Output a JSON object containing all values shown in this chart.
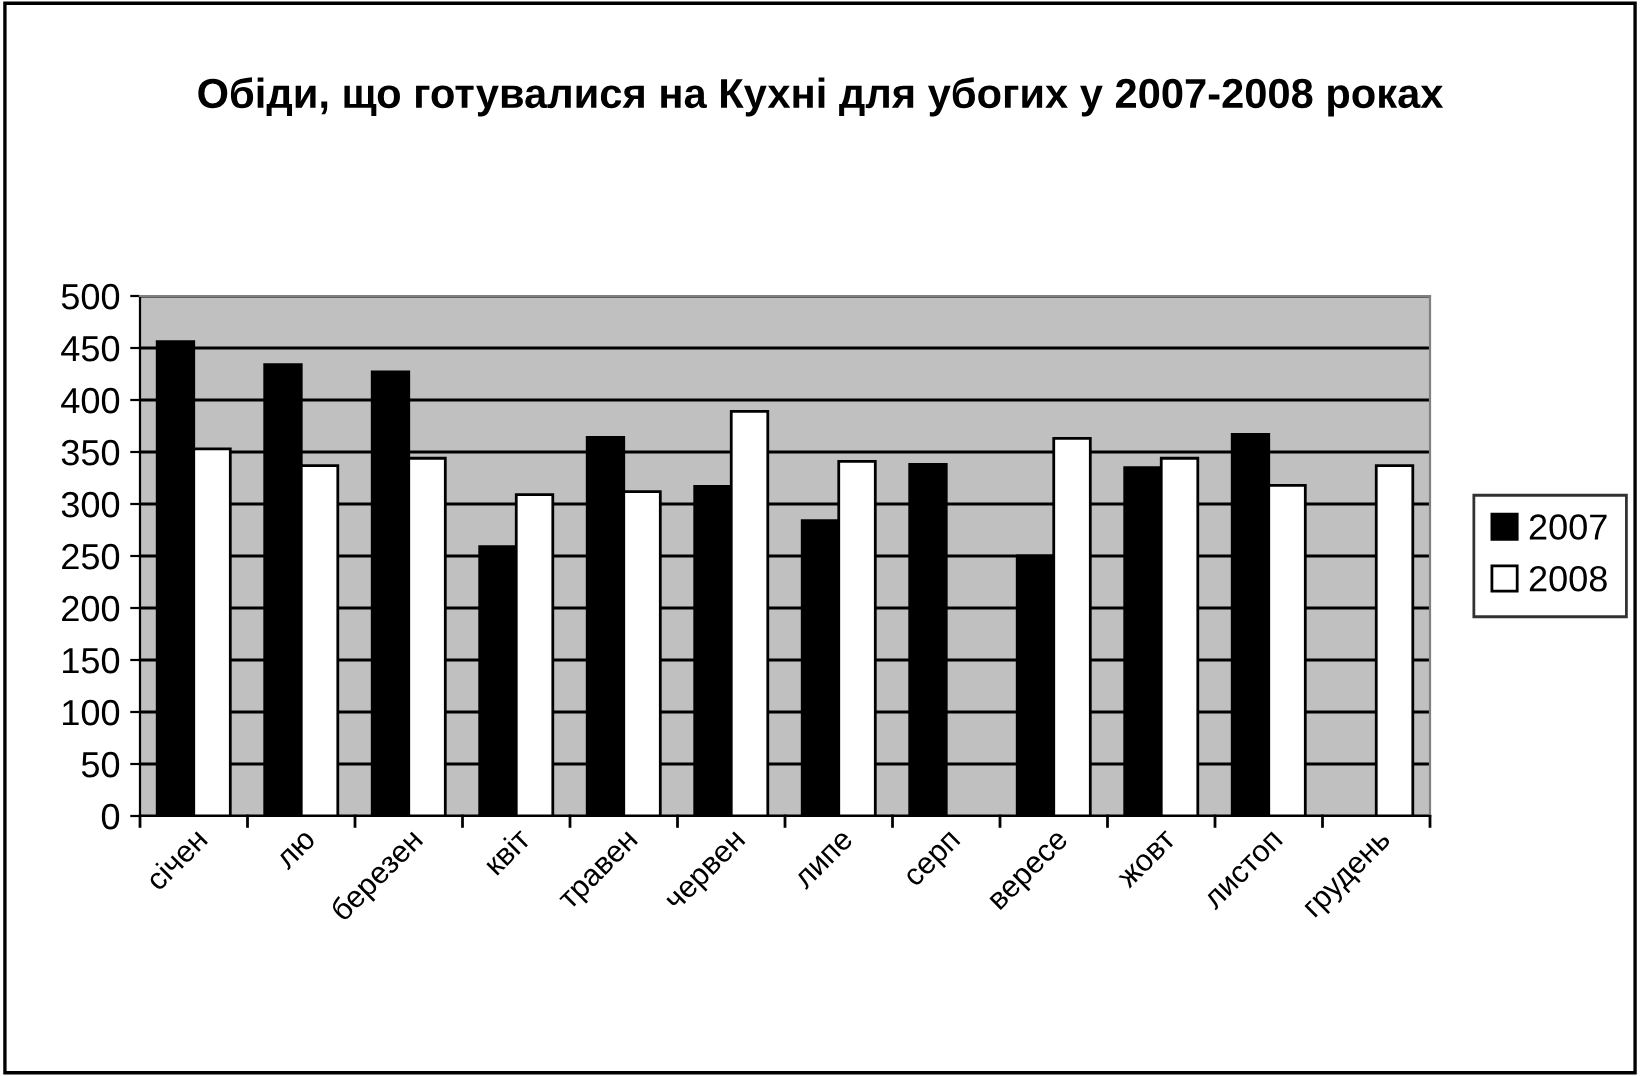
{
  "chart_data": {
    "type": "bar",
    "title": "Обіди, що готувалися на Кухні для убогих у 2007-2008 роках",
    "categories": [
      "січен",
      "лю",
      "березен",
      "квіт",
      "травен",
      "червен",
      "липе",
      "серп",
      "вересе",
      "жовт",
      "листоп",
      "грудень"
    ],
    "series": [
      {
        "name": "2007",
        "color": "#000000",
        "values": [
          456,
          434,
          427,
          259,
          364,
          317,
          284,
          338,
          250,
          335,
          367,
          null
        ]
      },
      {
        "name": "2008",
        "color": "#ffffff",
        "values": [
          353,
          337,
          344,
          309,
          312,
          389,
          341,
          null,
          363,
          344,
          318,
          337
        ]
      }
    ],
    "ylim": [
      0,
      500
    ],
    "yticks": [
      0,
      50,
      100,
      150,
      200,
      250,
      300,
      350,
      400,
      450,
      500
    ],
    "grid": "y",
    "legend": "right"
  }
}
